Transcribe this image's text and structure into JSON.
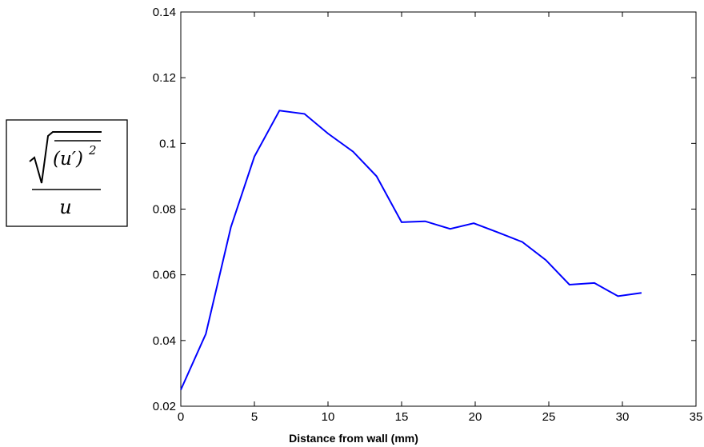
{
  "chart_data": {
    "type": "line",
    "title": "",
    "xlabel": "Distance from wall (mm)",
    "ylabel_formula": {
      "numerator": "(u′)",
      "exponent": "2",
      "denominator": "u"
    },
    "xlim": [
      0,
      35
    ],
    "ylim": [
      0.02,
      0.14
    ],
    "x_ticks": [
      0,
      5,
      10,
      15,
      20,
      25,
      30,
      35
    ],
    "x_tick_labels": [
      "0",
      "5",
      "10",
      "15",
      "20",
      "25",
      "30",
      "35"
    ],
    "y_ticks": [
      0.02,
      0.04,
      0.06,
      0.08,
      0.1,
      0.12,
      0.14
    ],
    "y_tick_labels": [
      "0.02",
      "0.04",
      "0.06",
      "0.08",
      "0.1",
      "0.12",
      "0.14"
    ],
    "grid": false,
    "series": [
      {
        "color": "#0000ff",
        "x": [
          0,
          1.7,
          3.4,
          5.0,
          6.7,
          8.4,
          10.0,
          11.7,
          13.3,
          15.0,
          16.6,
          18.3,
          19.9,
          21.5,
          23.2,
          24.8,
          26.4,
          28.1,
          29.7,
          31.3
        ],
        "y": [
          0.025,
          0.042,
          0.0745,
          0.096,
          0.11,
          0.109,
          0.103,
          0.0975,
          0.09,
          0.076,
          0.0763,
          0.074,
          0.0757,
          0.073,
          0.07,
          0.0645,
          0.057,
          0.0575,
          0.0535,
          0.0545
        ]
      }
    ]
  }
}
